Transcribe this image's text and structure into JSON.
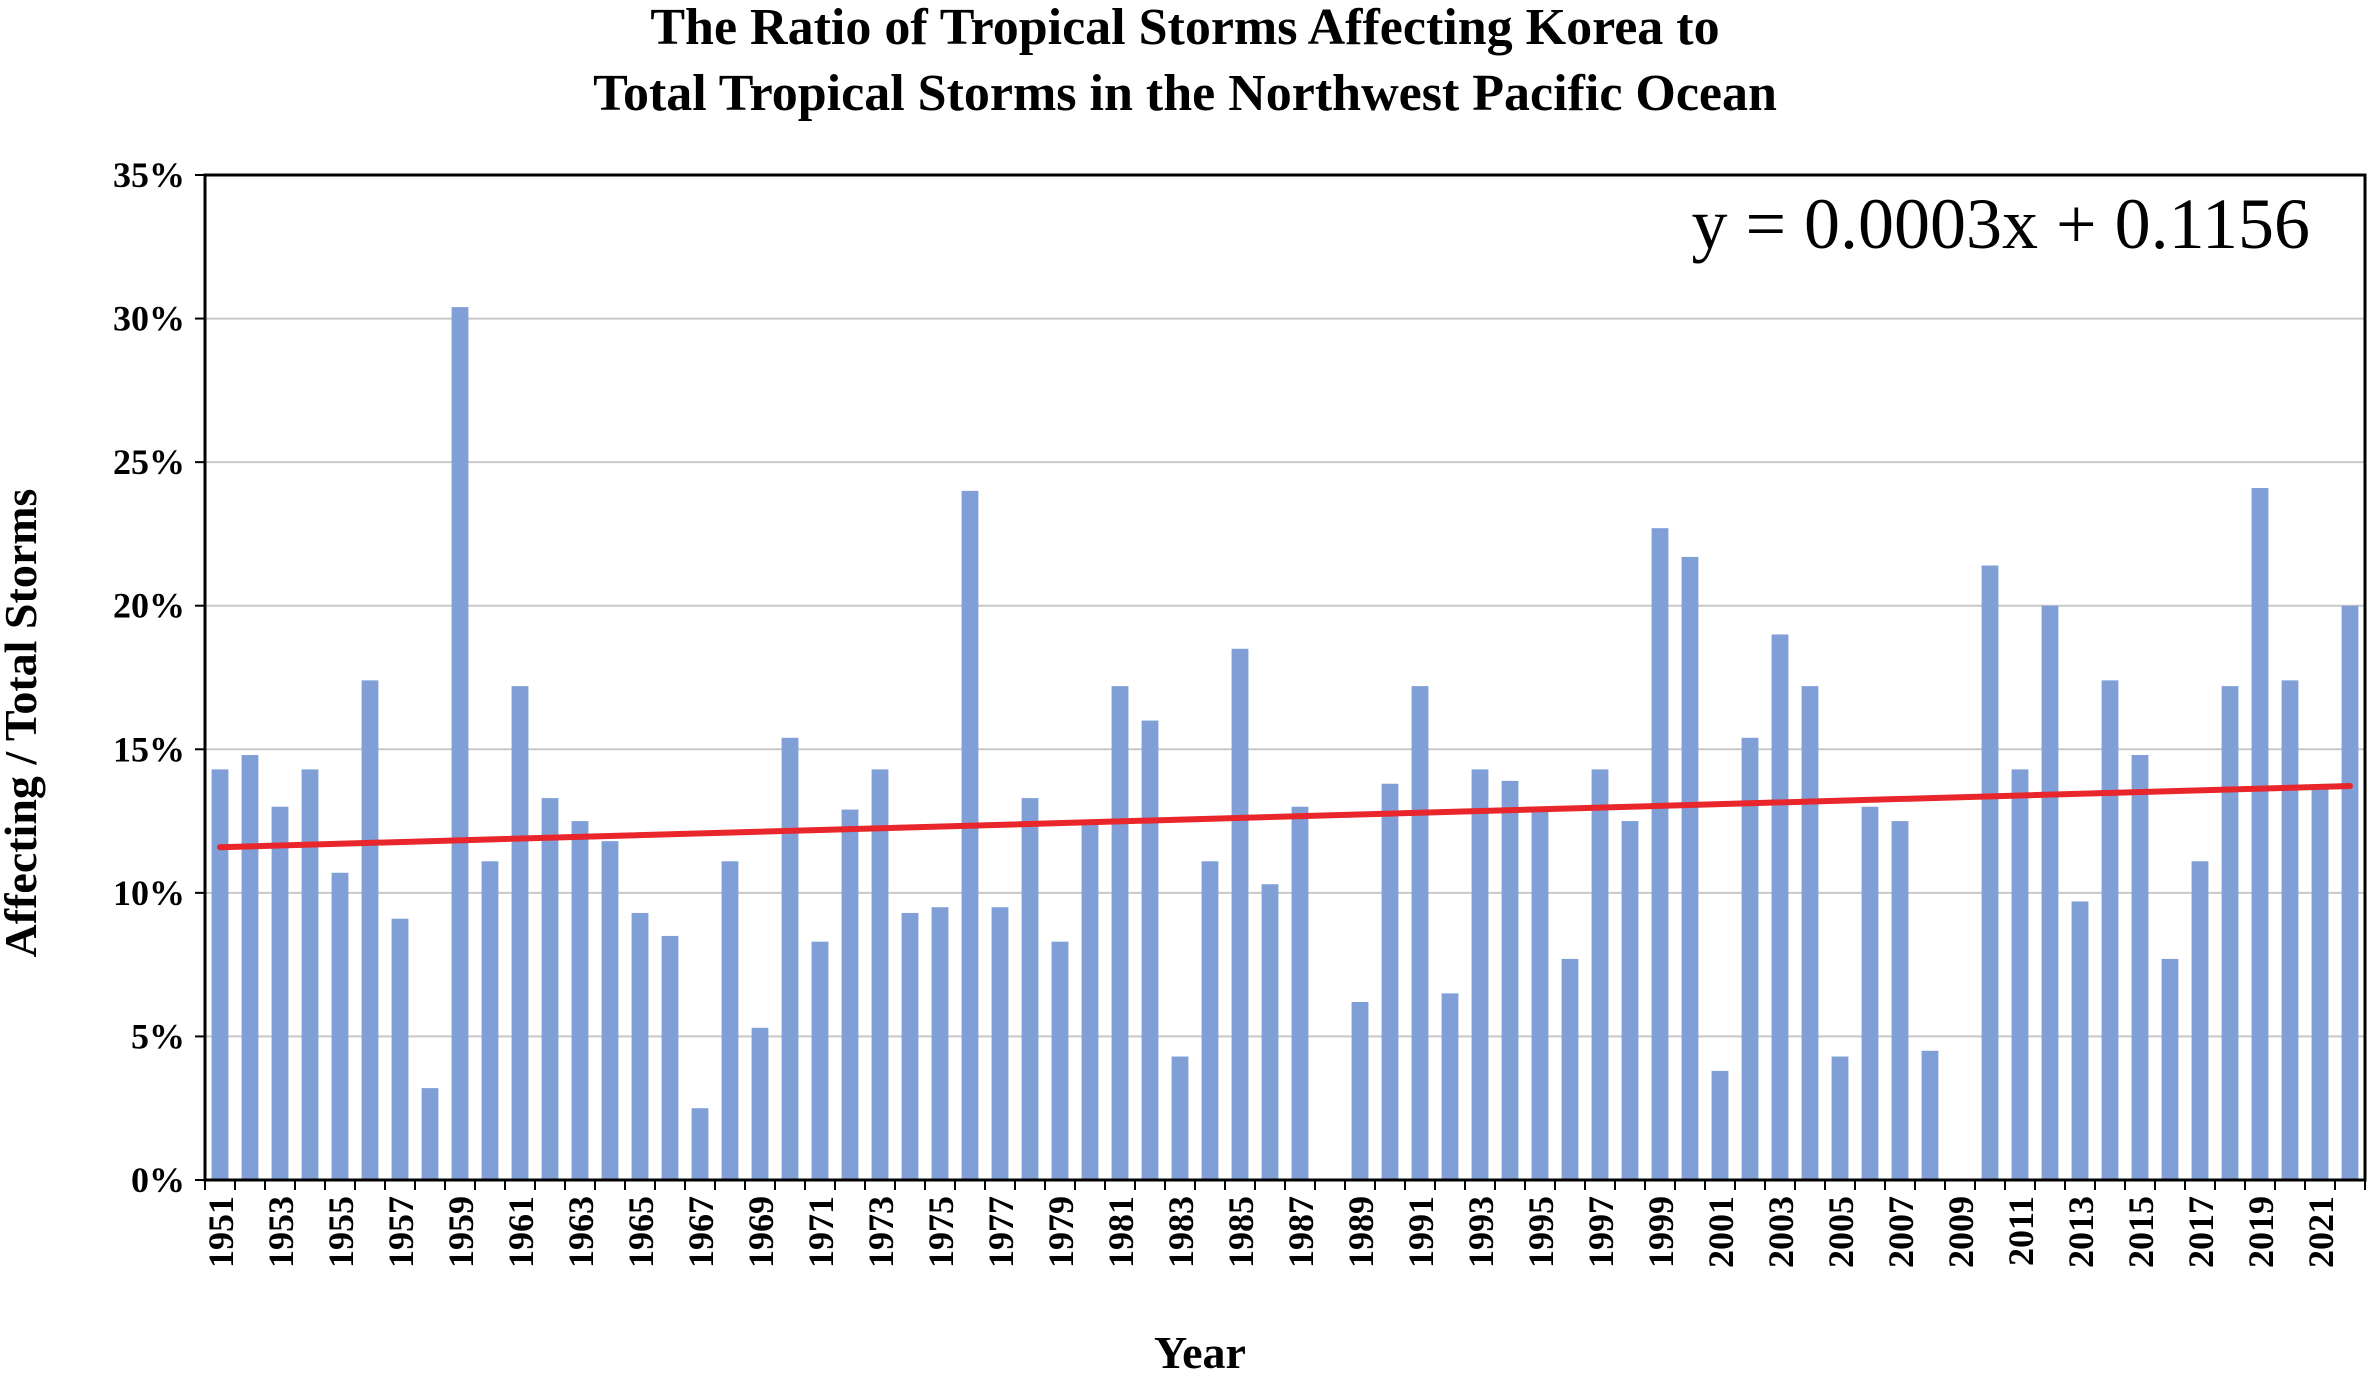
{
  "chart_data": {
    "type": "bar",
    "title_line1": "The Ratio of Tropical Storms Affecting Korea to",
    "title_line2": "Total Tropical Storms in the Northwest Pacific Ocean",
    "xlabel": "Year",
    "ylabel": "Affecting / Total Storms",
    "ylim": [
      0,
      0.35
    ],
    "yticks": [
      "0%",
      "5%",
      "10%",
      "15%",
      "20%",
      "25%",
      "30%",
      "35%"
    ],
    "ytick_values": [
      0,
      0.05,
      0.1,
      0.15,
      0.2,
      0.25,
      0.3,
      0.35
    ],
    "grid": true,
    "bar_color": "#7f9fd6",
    "trend_color": "#e8262b",
    "trendline": {
      "equation": "y = 0.0003x + 0.1156",
      "slope": 0.0003,
      "intercept": 0.1156
    },
    "categories": [
      1951,
      1952,
      1953,
      1954,
      1955,
      1956,
      1957,
      1958,
      1959,
      1960,
      1961,
      1962,
      1963,
      1964,
      1965,
      1966,
      1967,
      1968,
      1969,
      1970,
      1971,
      1972,
      1973,
      1974,
      1975,
      1976,
      1977,
      1978,
      1979,
      1980,
      1981,
      1982,
      1983,
      1984,
      1985,
      1986,
      1987,
      1988,
      1989,
      1990,
      1991,
      1992,
      1993,
      1994,
      1995,
      1996,
      1997,
      1998,
      1999,
      2000,
      2001,
      2002,
      2003,
      2004,
      2005,
      2006,
      2007,
      2008,
      2009,
      2010,
      2011,
      2012,
      2013,
      2014,
      2015,
      2016,
      2017,
      2018,
      2019,
      2020,
      2021,
      2022
    ],
    "tick_years": [
      "1951",
      "1953",
      "1955",
      "1957",
      "1959",
      "1961",
      "1963",
      "1965",
      "1967",
      "1969",
      "1971",
      "1973",
      "1975",
      "1977",
      "1979",
      "1981",
      "1983",
      "1985",
      "1987",
      "1989",
      "1991",
      "1993",
      "1995",
      "1997",
      "1999",
      "2001",
      "2003",
      "2005",
      "2007",
      "2009",
      "2011",
      "2013",
      "2015",
      "2017",
      "2019",
      "2021"
    ],
    "values": [
      0.143,
      0.148,
      0.13,
      0.143,
      0.107,
      0.174,
      0.091,
      0.032,
      0.304,
      0.111,
      0.172,
      0.133,
      0.125,
      0.118,
      0.093,
      0.085,
      0.025,
      0.111,
      0.053,
      0.154,
      0.083,
      0.129,
      0.143,
      0.093,
      0.095,
      0.24,
      0.095,
      0.133,
      0.083,
      0.125,
      0.172,
      0.16,
      0.043,
      0.111,
      0.185,
      0.103,
      0.13,
      0,
      0.062,
      0.138,
      0.172,
      0.065,
      0.143,
      0.139,
      0.13,
      0.077,
      0.143,
      0.125,
      0.227,
      0.217,
      0.038,
      0.154,
      0.19,
      0.172,
      0.043,
      0.13,
      0.125,
      0.045,
      0,
      0.214,
      0.143,
      0.2,
      0.097,
      0.174,
      0.148,
      0.077,
      0.111,
      0.172,
      0.241,
      0.174,
      0.136,
      0.2
    ]
  }
}
